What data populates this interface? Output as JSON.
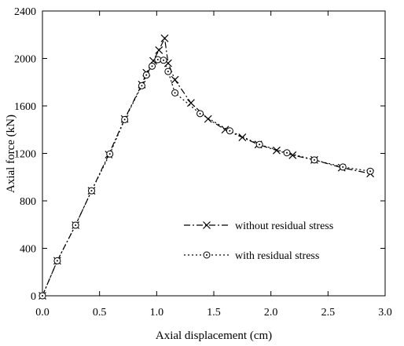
{
  "chart_data": {
    "type": "line",
    "title": "",
    "xlabel": "Axial displacement (cm)",
    "ylabel": "Axial force (kN)",
    "xlim": [
      0,
      3
    ],
    "ylim": [
      0,
      2400
    ],
    "x_ticks": [
      0,
      0.5,
      1,
      1.5,
      2,
      2.5,
      3
    ],
    "x_tick_labels": [
      "0.0",
      "0.5",
      "1.0",
      "1.5",
      "2.0",
      "2.5",
      "3.0"
    ],
    "y_ticks": [
      0,
      400,
      800,
      1200,
      1600,
      2000,
      2400
    ],
    "y_tick_labels": [
      "0",
      "400",
      "800",
      "1200",
      "1600",
      "2000",
      "2400"
    ],
    "grid": false,
    "legend_position": "lower-right",
    "series": [
      {
        "name": "without residual stress",
        "line_style": "dash-dot",
        "marker": "x",
        "x": [
          0.0,
          0.13,
          0.29,
          0.43,
          0.58,
          0.72,
          0.87,
          0.91,
          0.97,
          1.02,
          1.07,
          1.1,
          1.16,
          1.3,
          1.45,
          1.6,
          1.75,
          1.89,
          2.05,
          2.19,
          2.38,
          2.62,
          2.87
        ],
        "y": [
          0,
          295,
          595,
          885,
          1190,
          1490,
          1780,
          1880,
          1980,
          2070,
          2170,
          1960,
          1820,
          1625,
          1490,
          1400,
          1335,
          1275,
          1225,
          1185,
          1145,
          1080,
          1030
        ]
      },
      {
        "name": "with residual stress",
        "line_style": "dotted",
        "marker": "circle-dot",
        "x": [
          0.0,
          0.13,
          0.29,
          0.43,
          0.59,
          0.72,
          0.87,
          0.91,
          0.96,
          1.01,
          1.06,
          1.1,
          1.16,
          1.38,
          1.64,
          1.9,
          2.14,
          2.38,
          2.63,
          2.87
        ],
        "y": [
          0,
          295,
          595,
          885,
          1195,
          1485,
          1770,
          1860,
          1935,
          1990,
          1985,
          1890,
          1710,
          1535,
          1390,
          1275,
          1205,
          1145,
          1085,
          1050
        ]
      }
    ]
  }
}
